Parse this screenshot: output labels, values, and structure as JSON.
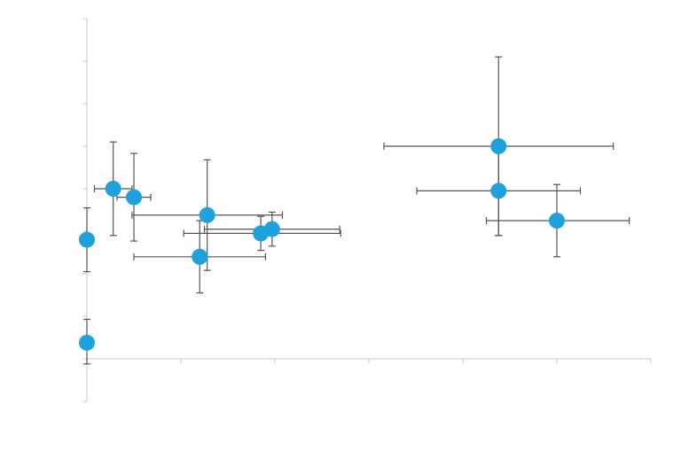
{
  "chart_data": {
    "type": "scatter",
    "title": "",
    "xlabel": "",
    "ylabel": "",
    "xlim": [
      0,
      6
    ],
    "ylim": [
      -1,
      8
    ],
    "x_ticks": [
      0,
      1,
      2,
      3,
      4,
      5,
      6
    ],
    "y_ticks": [
      -1,
      0,
      1,
      2,
      3,
      4,
      5,
      6,
      7,
      8
    ],
    "grid": false,
    "legend": "none",
    "colors": {
      "marker": "#1fa1dd",
      "error_bar": "#555555",
      "axis": "#c8c8c8"
    },
    "points": [
      {
        "x": 0.0,
        "y": 2.8,
        "x_err": [
          0.0,
          0.0
        ],
        "y_err": [
          0.75,
          0.75
        ]
      },
      {
        "x": 0.0,
        "y": 0.38,
        "x_err": [
          0.0,
          0.0
        ],
        "y_err": [
          0.5,
          0.55
        ]
      },
      {
        "x": 0.28,
        "y": 4.0,
        "x_err": [
          0.2,
          0.2
        ],
        "y_err": [
          1.1,
          1.1
        ]
      },
      {
        "x": 0.5,
        "y": 3.8,
        "x_err": [
          0.18,
          0.18
        ],
        "y_err": [
          1.03,
          1.03
        ]
      },
      {
        "x": 1.28,
        "y": 3.38,
        "x_err": [
          0.8,
          0.8
        ],
        "y_err": [
          1.3,
          1.3
        ]
      },
      {
        "x": 1.2,
        "y": 2.4,
        "x_err": [
          0.7,
          0.7
        ],
        "y_err": [
          0.85,
          0.85
        ]
      },
      {
        "x": 1.85,
        "y": 2.95,
        "x_err": [
          0.82,
          0.85
        ],
        "y_err": [
          0.4,
          0.4
        ]
      },
      {
        "x": 1.97,
        "y": 3.05,
        "x_err": [
          0.72,
          0.72
        ],
        "y_err": [
          0.4,
          0.4
        ]
      },
      {
        "x": 4.38,
        "y": 5.0,
        "x_err": [
          1.22,
          1.22
        ],
        "y_err": [
          2.1,
          2.1
        ]
      },
      {
        "x": 4.38,
        "y": 3.95,
        "x_err": [
          0.87,
          0.87
        ],
        "y_err": [
          1.05,
          1.05
        ]
      },
      {
        "x": 5.0,
        "y": 3.25,
        "x_err": [
          0.75,
          0.77
        ],
        "y_err": [
          0.85,
          0.85
        ]
      }
    ]
  }
}
